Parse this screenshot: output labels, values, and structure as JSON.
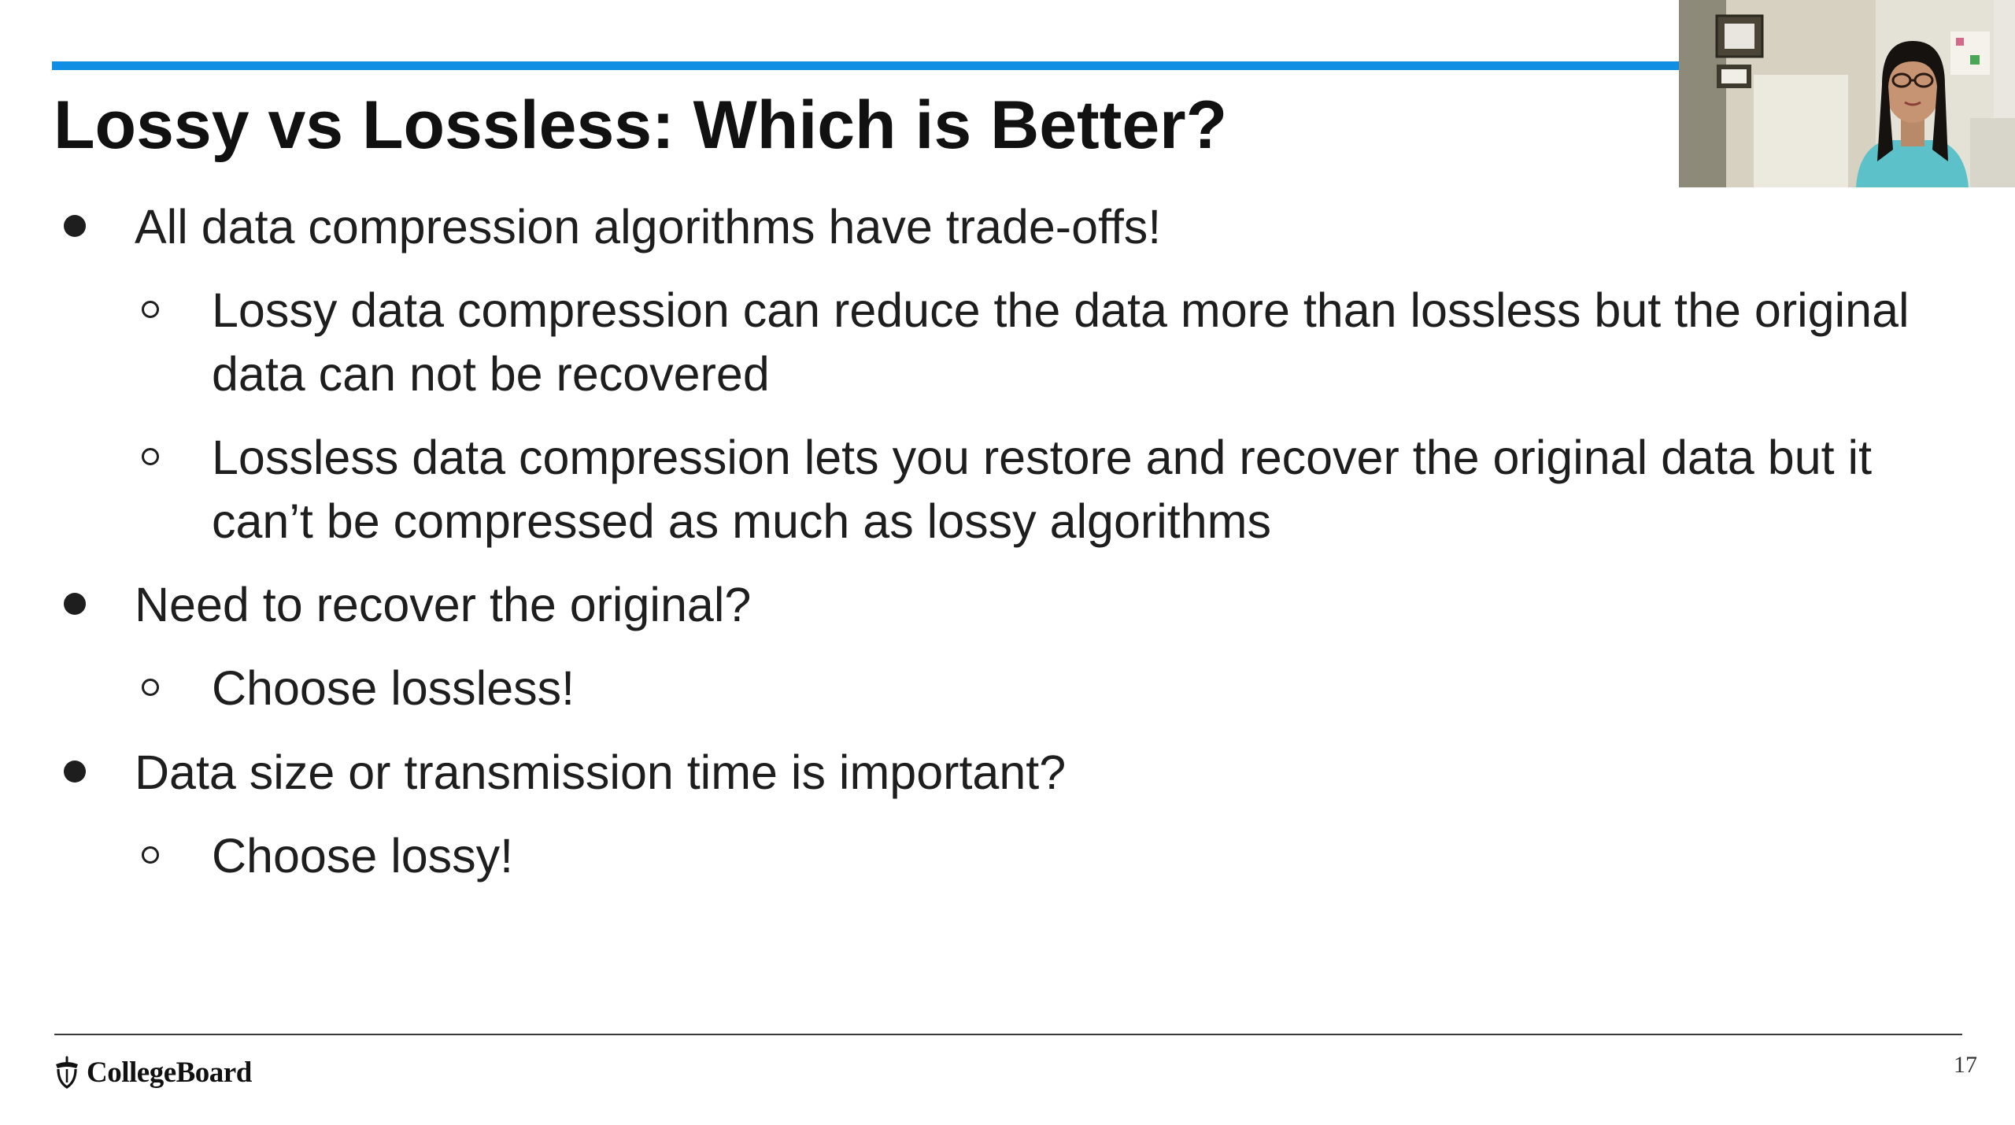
{
  "slide": {
    "title": "Lossy vs Lossless: Which is Better?",
    "bullets": [
      "All data compression algorithms have trade-offs!",
      "Lossy data compression can reduce the data more than lossless but the original data can not be recovered",
      "Lossless data compression lets you restore and recover the original data but it can’t be compressed as much as lossy algorithms",
      "Need to recover the original?",
      "Choose lossless!",
      "Data size or transmission time is important?",
      "Choose lossy!"
    ],
    "page_number": "17"
  },
  "footer": {
    "logo_text": "CollegeBoard"
  },
  "colors": {
    "accent_rule": "#0f8ee3",
    "text": "#1e1e1e"
  },
  "icons": {
    "logo": "collegeboard-acorn-icon",
    "bullet_level1": "filled-circle",
    "bullet_level2": "hollow-circle"
  }
}
